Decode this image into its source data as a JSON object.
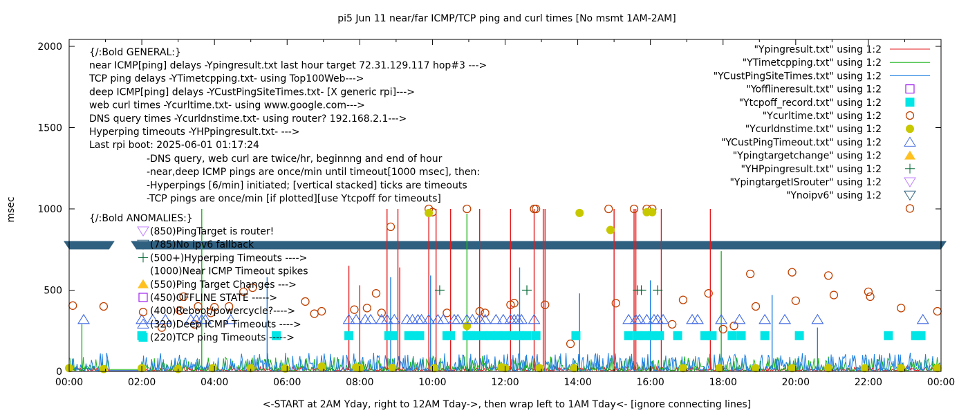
{
  "chart_data": {
    "type": "line",
    "title": "pi5 Jun 11  near/far ICMP/TCP ping and curl times [No msmt 1AM-2AM]",
    "xlabel": "<-START at 2AM Yday, right to 12AM Tday->, then wrap left to 1AM Tday<- [ignore connecting lines]",
    "ylabel": "msec",
    "xlim_hours": [
      0,
      24
    ],
    "ylim": [
      0,
      2000
    ],
    "x_ticks": [
      "00:00",
      "02:00",
      "04:00",
      "06:00",
      "08:00",
      "10:00",
      "12:00",
      "14:00",
      "16:00",
      "18:00",
      "20:00",
      "22:00",
      "00:00"
    ],
    "y_ticks": [
      0,
      500,
      1000,
      1500,
      2000
    ],
    "grid": false,
    "legend_position": "top-right",
    "legend": [
      {
        "label": "\"Ypingresult.txt\" using 1:2",
        "style": "line",
        "color": "#e41a1c"
      },
      {
        "label": "\"YTimetcpping.txt\" using 1:2",
        "style": "line",
        "color": "#1fb51f"
      },
      {
        "label": "\"YCustPingSiteTimes.txt\" using 1:2",
        "style": "line",
        "color": "#1e7fe0"
      },
      {
        "label": "\"Yofflineresult.txt\" using 1:2",
        "style": "open-square",
        "color": "#a020f0"
      },
      {
        "label": "\"Ytcpoff_record.txt\" using 1:2",
        "style": "filled-square",
        "color": "#00e5e5"
      },
      {
        "label": "\"Ycurltime.txt\" using 1:2",
        "style": "open-circle",
        "color": "#c04000"
      },
      {
        "label": "\"Ycurldnstime.txt\" using 1:2",
        "style": "filled-circle",
        "color": "#c8c800"
      },
      {
        "label": "\"YCustPingTimeout.txt\" using 1:2",
        "style": "open-triangle-up",
        "color": "#4169e1"
      },
      {
        "label": "\"Ypingtargetchange\" using 1:2",
        "style": "filled-triangle-up",
        "color": "#ffc020"
      },
      {
        "label": "\"YHPpingresult.txt\" using 1:2",
        "style": "plus",
        "color": "#006633"
      },
      {
        "label": "\"YpingtargetISrouter\" using 1:2",
        "style": "open-triangle-down",
        "color": "#c080ff"
      },
      {
        "label": "\"Ynoipv6\" using 1:2",
        "style": "open-triangle-down",
        "color": "#306080"
      },
      {
        "label": "",
        "style": "open-circle",
        "color": "#c04000"
      }
    ],
    "annotations": {
      "general_header": "{/:Bold GENERAL:}",
      "general": [
        "near ICMP[ping] delays -Ypingresult.txt last hour target 72.31.129.117 hop#3 --->",
        "TCP ping delays -YTimetcpping.txt- using Top100Web--->",
        "deep ICMP[ping] delays -YCustPingSiteTimes.txt- [X generic rpi]--->",
        "web curl times -Ycurltime.txt- using www.google.com--->",
        "DNS query times -Ycurldnstime.txt- using router? 192.168.2.1--->",
        "Hyperping timeouts -YHPpingresult.txt- --->",
        "Last rpi boot: 2025-06-01 01:17:24"
      ],
      "notes": [
        "-DNS query, web curl are twice/hr, beginnng and end of hour",
        "-near,deep ICMP pings are once/min until timeout[1000 msec], then:",
        "  -Hyperpings [6/min] initiated; [vertical stacked] ticks are timeouts",
        "-TCP pings are once/min [if plotted][use Ytcpoff for timeouts]"
      ],
      "anomalies_header": "{/:Bold ANOMALIES:}",
      "anomalies": [
        {
          "marker": "open-triangle-down-purple",
          "text": "(850)PingTarget is router!"
        },
        {
          "marker": "open-triangle-down-navy",
          "text": "(785)No ipv6 fallback"
        },
        {
          "marker": "plus",
          "text": "(500+)Hyperping Timeouts ---->"
        },
        {
          "marker": "none",
          "text": "(1000)Near ICMP Timeout spikes"
        },
        {
          "marker": "filled-triangle-up",
          "text": "(550)Ping Target Changes --->"
        },
        {
          "marker": "open-square",
          "text": "(450)OFFLINE STATE ----->"
        },
        {
          "marker": "open-circle",
          "text": "(400)Reboot/powercycle?---->"
        },
        {
          "marker": "open-triangle-up",
          "text": "(320)Deep ICMP Timeouts ---->"
        },
        {
          "marker": "filled-square",
          "text": "(220)TCP ping Timeouts ----->"
        }
      ]
    },
    "series": [
      {
        "name": "Ynoipv6",
        "type": "band",
        "y": 785,
        "x_ranges_hours": [
          [
            0.0,
            1.1
          ],
          [
            1.85,
            24.0
          ]
        ]
      },
      {
        "name": "Ypingresult.txt spikes",
        "type": "spikes",
        "x_hours": [
          7.7,
          8.0,
          8.75,
          9.05,
          9.1,
          9.9,
          10.1,
          10.5,
          11.3,
          12.15,
          12.8,
          13.05,
          13.1,
          15.0,
          15.55,
          15.6,
          16.3,
          17.65
        ],
        "y": [
          650,
          530,
          1000,
          1000,
          640,
          1000,
          1000,
          1000,
          1000,
          1000,
          1000,
          1000,
          1000,
          1000,
          1000,
          1000,
          1000,
          1000
        ]
      },
      {
        "name": "YTimetcpping.txt spikes",
        "type": "spikes",
        "x_hours": [
          0.35,
          3.65,
          10.95,
          17.95
        ],
        "y": [
          290,
          1000,
          970,
          740
        ]
      },
      {
        "name": "YCustPingSiteTimes.txt spikes",
        "type": "spikes",
        "x_hours": [
          5.45,
          8.85,
          9.95,
          12.4,
          14.05,
          16.0,
          19.35,
          20.6
        ],
        "y": [
          580,
          580,
          590,
          640,
          480,
          560,
          470,
          270
        ]
      },
      {
        "name": "Ycurltime.txt",
        "type": "scatter",
        "x_hours": [
          0.1,
          0.95,
          2.55,
          3.05,
          3.15,
          3.45,
          3.55,
          3.9,
          4.0,
          4.4,
          4.8,
          5.05,
          6.5,
          6.75,
          6.95,
          7.85,
          8.2,
          8.45,
          8.6,
          8.85,
          9.9,
          10.0,
          10.4,
          10.95,
          11.3,
          11.45,
          12.15,
          12.25,
          12.8,
          12.85,
          13.1,
          13.8,
          14.85,
          15.05,
          15.55,
          15.9,
          16.05,
          16.6,
          16.9,
          17.6,
          18.0,
          18.3,
          18.75,
          18.9,
          19.9,
          20.0,
          20.9,
          21.05,
          22.0,
          22.05,
          22.9,
          23.9
        ],
        "y": [
          405,
          400,
          270,
          375,
          460,
          290,
          400,
          360,
          395,
          400,
          490,
          515,
          430,
          355,
          370,
          380,
          390,
          480,
          360,
          890,
          1000,
          980,
          360,
          1000,
          370,
          360,
          410,
          420,
          1000,
          1000,
          410,
          170,
          1000,
          420,
          1000,
          1000,
          1000,
          290,
          440,
          480,
          260,
          280,
          600,
          400,
          610,
          435,
          590,
          470,
          490,
          460,
          390,
          370
        ]
      },
      {
        "name": "Ycurldnstime.txt",
        "type": "scatter",
        "x_hours": [
          0.0,
          0.95,
          2.0,
          3.0,
          3.95,
          5.0,
          5.95,
          6.95,
          7.9,
          8.0,
          8.9,
          9.9,
          10.05,
          10.95,
          11.9,
          12.0,
          12.95,
          13.9,
          14.05,
          14.9,
          15.9,
          16.05,
          16.9,
          17.9,
          18.9,
          19.9,
          20.9,
          21.9,
          22.9,
          23.9
        ],
        "y": [
          20,
          15,
          20,
          15,
          20,
          20,
          18,
          30,
          25,
          20,
          22,
          975,
          20,
          280,
          25,
          20,
          20,
          20,
          975,
          870,
          980,
          980,
          20,
          20,
          20,
          20,
          20,
          20,
          20,
          20
        ]
      },
      {
        "name": "YCustPingTimeout.txt",
        "type": "scatter",
        "x_hours": [
          0.4,
          2.0,
          2.3,
          2.65,
          3.35,
          3.5,
          3.65,
          3.75,
          4.45,
          7.7,
          7.9,
          8.15,
          8.3,
          8.6,
          8.75,
          8.95,
          9.3,
          9.45,
          9.6,
          9.7,
          9.9,
          10.15,
          10.3,
          10.6,
          10.7,
          10.95,
          11.1,
          11.3,
          11.45,
          11.75,
          11.95,
          12.15,
          12.25,
          12.35,
          12.45,
          12.8,
          15.4,
          15.6,
          15.7,
          15.9,
          16.1,
          16.2,
          16.35,
          17.15,
          17.3,
          17.95,
          18.45,
          19.15,
          19.7,
          20.6,
          23.5
        ],
        "y": [
          320,
          320,
          320,
          320,
          320,
          320,
          320,
          320,
          320,
          320,
          320,
          320,
          320,
          320,
          320,
          320,
          320,
          320,
          320,
          320,
          320,
          320,
          320,
          320,
          320,
          320,
          320,
          320,
          320,
          320,
          320,
          320,
          320,
          320,
          320,
          320,
          320,
          320,
          320,
          320,
          320,
          320,
          320,
          320,
          320,
          320,
          320,
          320,
          320,
          320,
          320
        ]
      },
      {
        "name": "Ytcpoff_record.txt",
        "type": "scatter",
        "x_hours": [
          2.0,
          5.7,
          7.7,
          8.8,
          8.9,
          9.35,
          9.5,
          9.65,
          10.4,
          10.5,
          10.95,
          11.05,
          11.2,
          11.4,
          11.6,
          11.8,
          12.0,
          12.2,
          12.4,
          12.6,
          12.85,
          13.95,
          15.4,
          15.65,
          15.85,
          16.05,
          16.25,
          16.75,
          17.5,
          17.7,
          18.25,
          18.5,
          19.15,
          20.1,
          22.55,
          23.3,
          23.45
        ],
        "y": [
          220,
          220,
          220,
          220,
          220,
          220,
          220,
          220,
          220,
          220,
          220,
          220,
          220,
          220,
          220,
          220,
          220,
          220,
          220,
          220,
          220,
          220,
          220,
          220,
          220,
          220,
          220,
          220,
          220,
          220,
          220,
          220,
          220,
          220,
          220,
          220,
          220
        ]
      },
      {
        "name": "YHPpingresult.txt",
        "type": "scatter",
        "x_hours": [
          10.2,
          12.6,
          15.65,
          15.75,
          16.2
        ],
        "y": [
          500,
          500,
          500,
          500,
          500
        ]
      }
    ],
    "baseline_noise": {
      "Ypingresult.txt": "mostly 0-40 msec",
      "YTimetcpping.txt": "mostly 0-120 msec",
      "YCustPingSiteTimes.txt": "mostly 0-150 msec"
    }
  }
}
